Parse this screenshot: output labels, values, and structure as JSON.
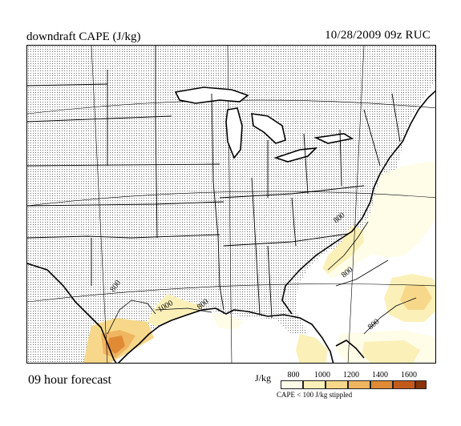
{
  "header": {
    "title": "downdraft CAPE (J/kg)",
    "run_info": "10/28/2009  09z  RUC"
  },
  "map": {
    "contour_labels": [
      "800",
      "800",
      "800",
      "1000",
      "800",
      "800"
    ]
  },
  "footer": {
    "forecast_label": "09 hour forecast",
    "units": "J/kg",
    "stipple_note": "CAPE < 100 J/kg stippled"
  },
  "legend": {
    "ticks": [
      "800",
      "1000",
      "1200",
      "1400",
      "1600"
    ],
    "colors": [
      "#fffde8",
      "#fbf0b8",
      "#f7d88a",
      "#f0b560",
      "#e08a35",
      "#c45a1a",
      "#8a3308"
    ]
  }
}
